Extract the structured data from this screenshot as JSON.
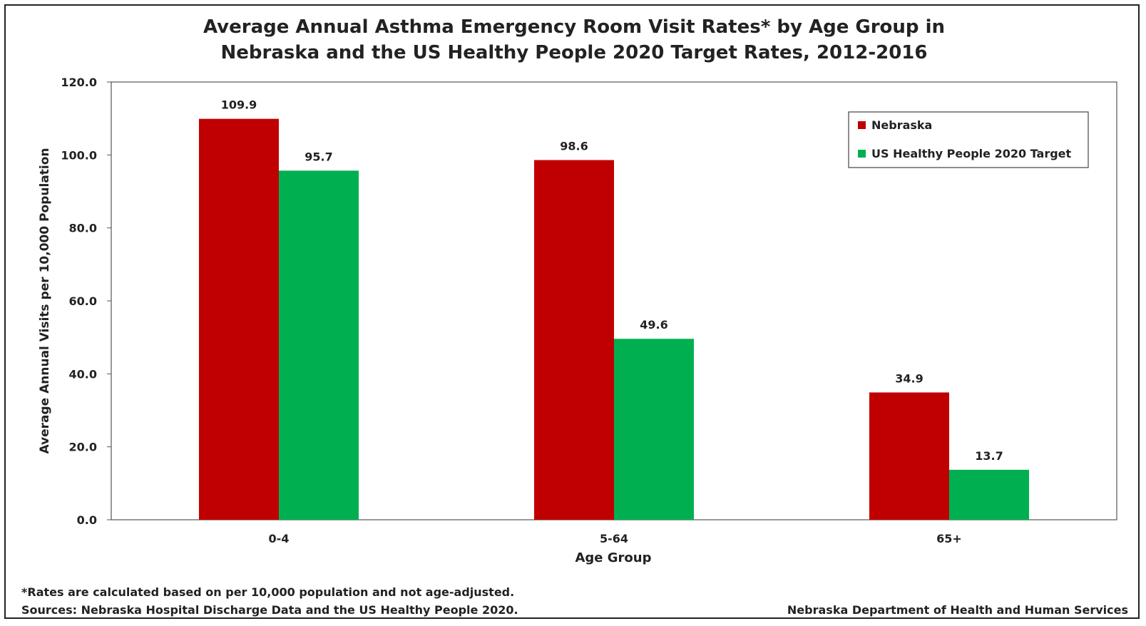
{
  "chart_data": {
    "type": "bar",
    "title_lines": [
      "Average Annual Asthma Emergency Room Visit Rates* by Age Group in",
      "Nebraska and the US Healthy People 2020 Target Rates, 2012-2016"
    ],
    "xlabel": "Age Group",
    "ylabel": "Average Annual Visits per 10,000 Population",
    "categories": [
      "0-4",
      "5-64",
      "65+"
    ],
    "series": [
      {
        "name": "Nebraska",
        "color": "#C00000",
        "values": [
          109.9,
          98.6,
          34.9
        ]
      },
      {
        "name": "US Healthy People 2020 Target",
        "color": "#00B050",
        "values": [
          95.7,
          49.6,
          13.7
        ]
      }
    ],
    "ylim": [
      0,
      120
    ],
    "yticks": [
      "0.0",
      "20.0",
      "40.0",
      "60.0",
      "80.0",
      "100.0",
      "120.0"
    ],
    "value_labels": [
      [
        "109.9",
        "98.6",
        "34.9"
      ],
      [
        "95.7",
        "49.6",
        "13.7"
      ]
    ],
    "grid": false,
    "legend_position": "top-right",
    "footnotes": {
      "note": "*Rates are calculated based on per 10,000 population and not age-adjusted.",
      "sources": "Sources: Nebraska Hospital Discharge Data and the US Healthy People 2020.",
      "credit": "Nebraska Department of Health and Human Services"
    }
  }
}
